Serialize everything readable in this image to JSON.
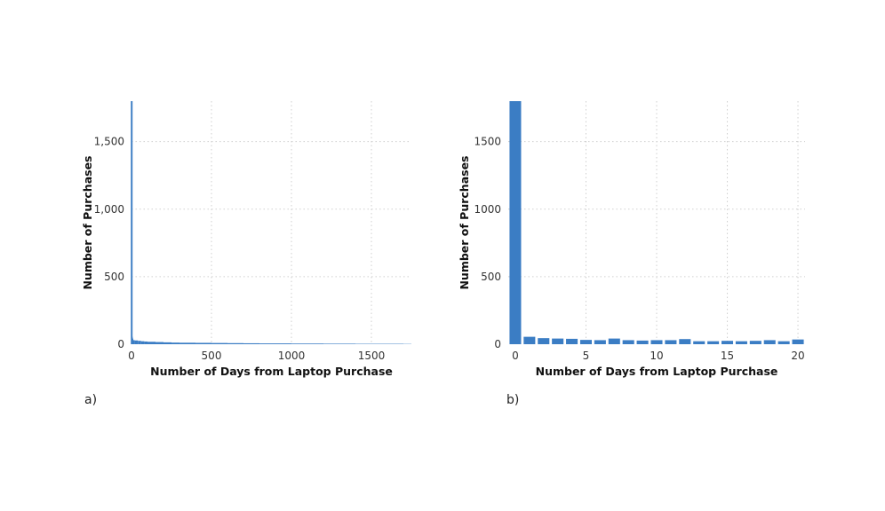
{
  "chart_data": [
    {
      "panel": "a)",
      "type": "bar",
      "xlabel": "Number of Days from Laptop Purchase",
      "ylabel": "Number of Purchases",
      "xlim": [
        0,
        1750
      ],
      "ylim": [
        0,
        1800
      ],
      "xticks": [
        0,
        500,
        1000,
        1500
      ],
      "xtick_labels": [
        "0",
        "500",
        "1000",
        "1500"
      ],
      "yticks": [
        0,
        500,
        1000,
        1500
      ],
      "ytick_labels": [
        "0",
        "500",
        "1,000",
        "1,500"
      ],
      "grid": true,
      "x": [
        0,
        1,
        2,
        3,
        4,
        5,
        10,
        20,
        40,
        60,
        80,
        100,
        150,
        200,
        250,
        300,
        400,
        500,
        600,
        700,
        800,
        900,
        1000,
        1100,
        1200,
        1300,
        1400,
        1500,
        1600,
        1700,
        1740
      ],
      "values": [
        1800,
        55,
        45,
        42,
        40,
        32,
        30,
        28,
        25,
        22,
        20,
        18,
        16,
        14,
        12,
        11,
        10,
        9,
        8,
        7,
        6,
        6,
        5,
        5,
        4,
        4,
        3,
        3,
        3,
        2,
        2
      ]
    },
    {
      "panel": "b)",
      "type": "bar",
      "xlabel": "Number of Days from Laptop Purchase",
      "ylabel": "Number of Purchases",
      "xlim": [
        -0.5,
        20.5
      ],
      "ylim": [
        0,
        1800
      ],
      "xticks": [
        0,
        5,
        10,
        15,
        20
      ],
      "xtick_labels": [
        "0",
        "5",
        "10",
        "15",
        "20"
      ],
      "yticks": [
        0,
        500,
        1000,
        1500
      ],
      "ytick_labels": [
        "0",
        "500",
        "1000",
        "1500"
      ],
      "grid": true,
      "categories": [
        0,
        1,
        2,
        3,
        4,
        5,
        6,
        7,
        8,
        9,
        10,
        11,
        12,
        13,
        14,
        15,
        16,
        17,
        18,
        19,
        20
      ],
      "values": [
        1800,
        55,
        45,
        42,
        40,
        32,
        30,
        42,
        30,
        27,
        30,
        30,
        38,
        22,
        22,
        25,
        22,
        25,
        30,
        22,
        35
      ]
    }
  ],
  "labels": {
    "panel_a": "a)",
    "panel_b": "b)"
  },
  "colors": {
    "bar": "#3b7dc4",
    "axis": "#3b7dc4"
  }
}
